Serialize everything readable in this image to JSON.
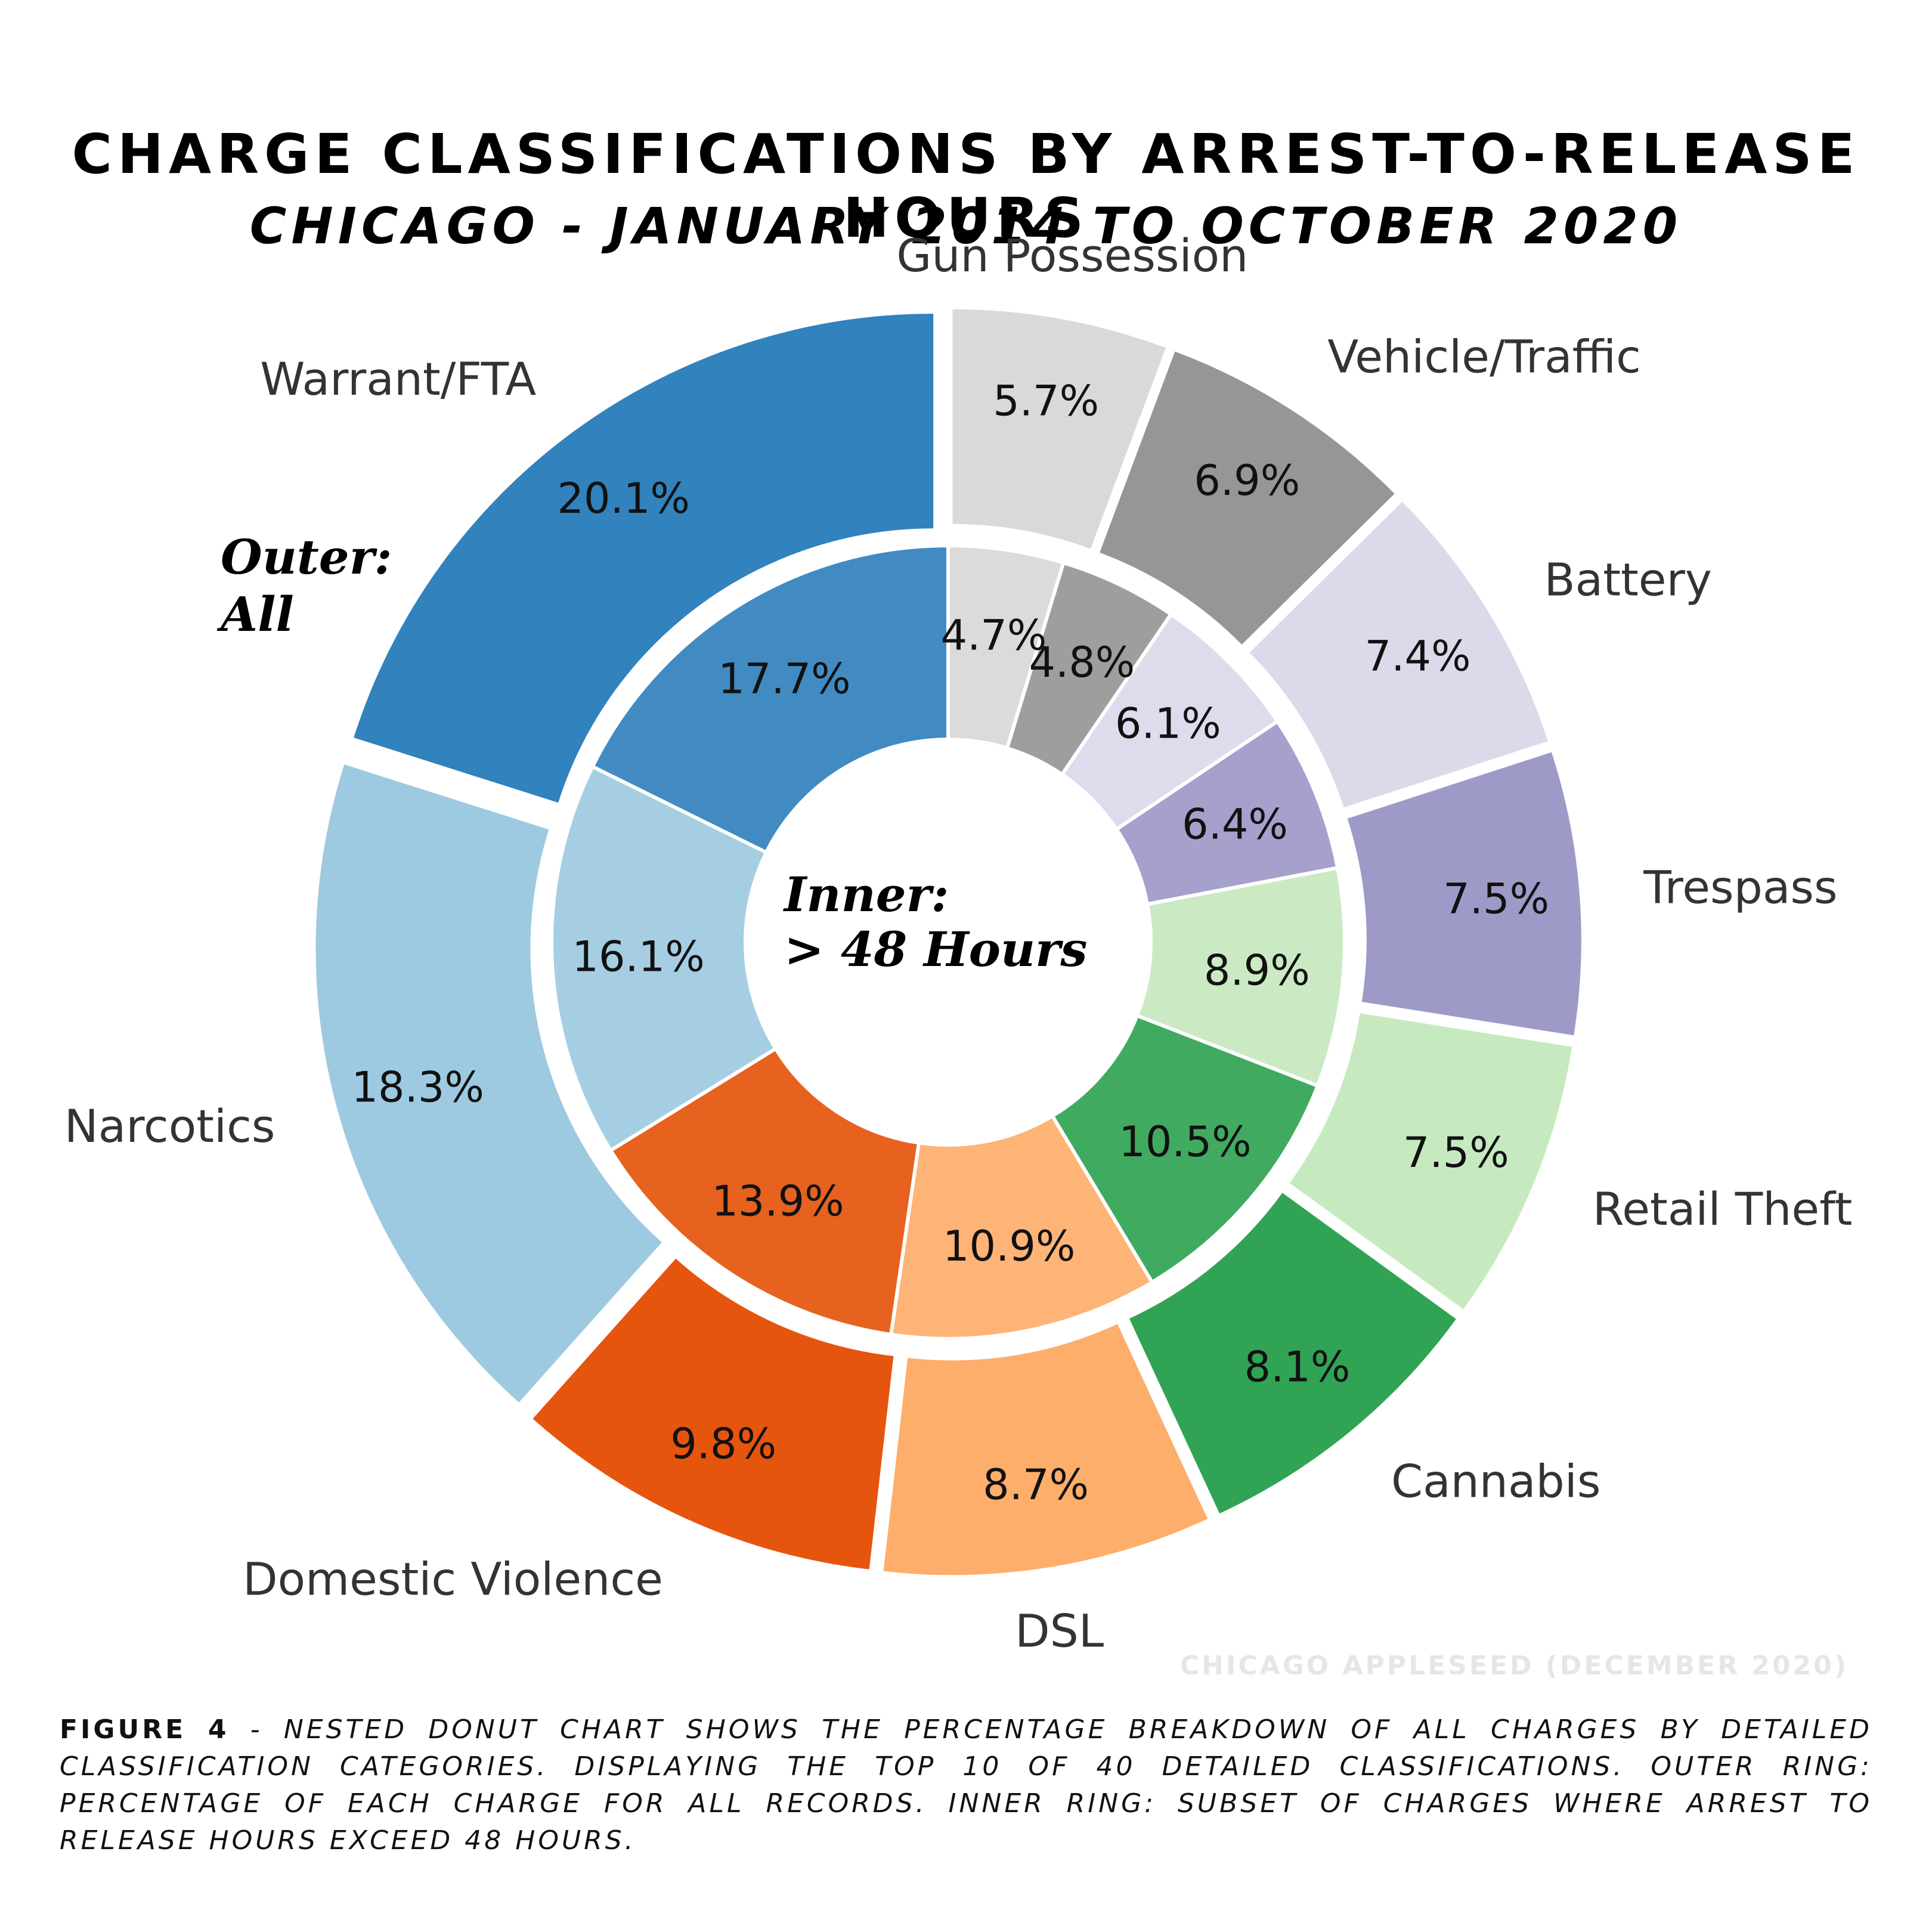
{
  "title": "CHARGE CLASSIFICATIONS BY ARREST-TO-RELEASE HOURS",
  "subtitle": "CHICAGO - JANUARY 2014 TO OCTOBER 2020",
  "credit": "CHICAGO APPLESEED (DECEMBER 2020)",
  "caption": {
    "figure": "FIGURE 4",
    "text": " - NESTED DONUT CHART SHOWS THE PERCENTAGE BREAKDOWN OF ALL CHARGES BY DETAILED CLASSIFICATION CATEGORIES. DISPLAYING THE TOP 10 OF 40 DETAILED CLASSIFICATIONS. OUTER RING: PERCENTAGE OF EACH CHARGE FOR ALL RECORDS. INNER RING: SUBSET OF CHARGES WHERE ARREST TO RELEASE HOURS EXCEED 48 HOURS."
  },
  "chart_data": {
    "type": "pie",
    "subtype": "nested-donut",
    "outer_ring_label": [
      "Outer:",
      "All"
    ],
    "inner_ring_label": [
      "Inner:",
      "> 48 Hours"
    ],
    "categories": [
      "Gun Possession",
      "Vehicle/Traffic",
      "Battery",
      "Trespass",
      "Retail Theft",
      "Cannabis",
      "DSL",
      "Domestic Violence",
      "Narcotics",
      "Warrant/FTA"
    ],
    "colors": [
      "#d9d9d9",
      "#969696",
      "#dadaeb",
      "#9e9ac8",
      "#c7e9c0",
      "#31a354",
      "#fdae6b",
      "#e6550d",
      "#9ecae1",
      "#3182bd"
    ],
    "series": [
      {
        "name": "Outer: All",
        "values": [
          5.7,
          6.9,
          7.4,
          7.5,
          7.5,
          8.1,
          8.7,
          9.8,
          18.3,
          20.1
        ]
      },
      {
        "name": "Inner: > 48 Hours",
        "values": [
          4.7,
          4.8,
          6.1,
          6.4,
          8.9,
          10.5,
          10.9,
          13.9,
          16.1,
          17.7
        ]
      }
    ],
    "outer_labels": [
      "5.7%",
      "6.9%",
      "7.4%",
      "7.5%",
      "7.5%",
      "8.1%",
      "8.7%",
      "9.8%",
      "18.3%",
      "20.1%"
    ],
    "inner_labels": [
      "4.7%",
      "4.8%",
      "6.1%",
      "6.4%",
      "8.9%",
      "10.5%",
      "10.9%",
      "13.9%",
      "16.1%",
      "17.7%"
    ],
    "start_angle": "12 o'clock",
    "direction": "clockwise"
  }
}
